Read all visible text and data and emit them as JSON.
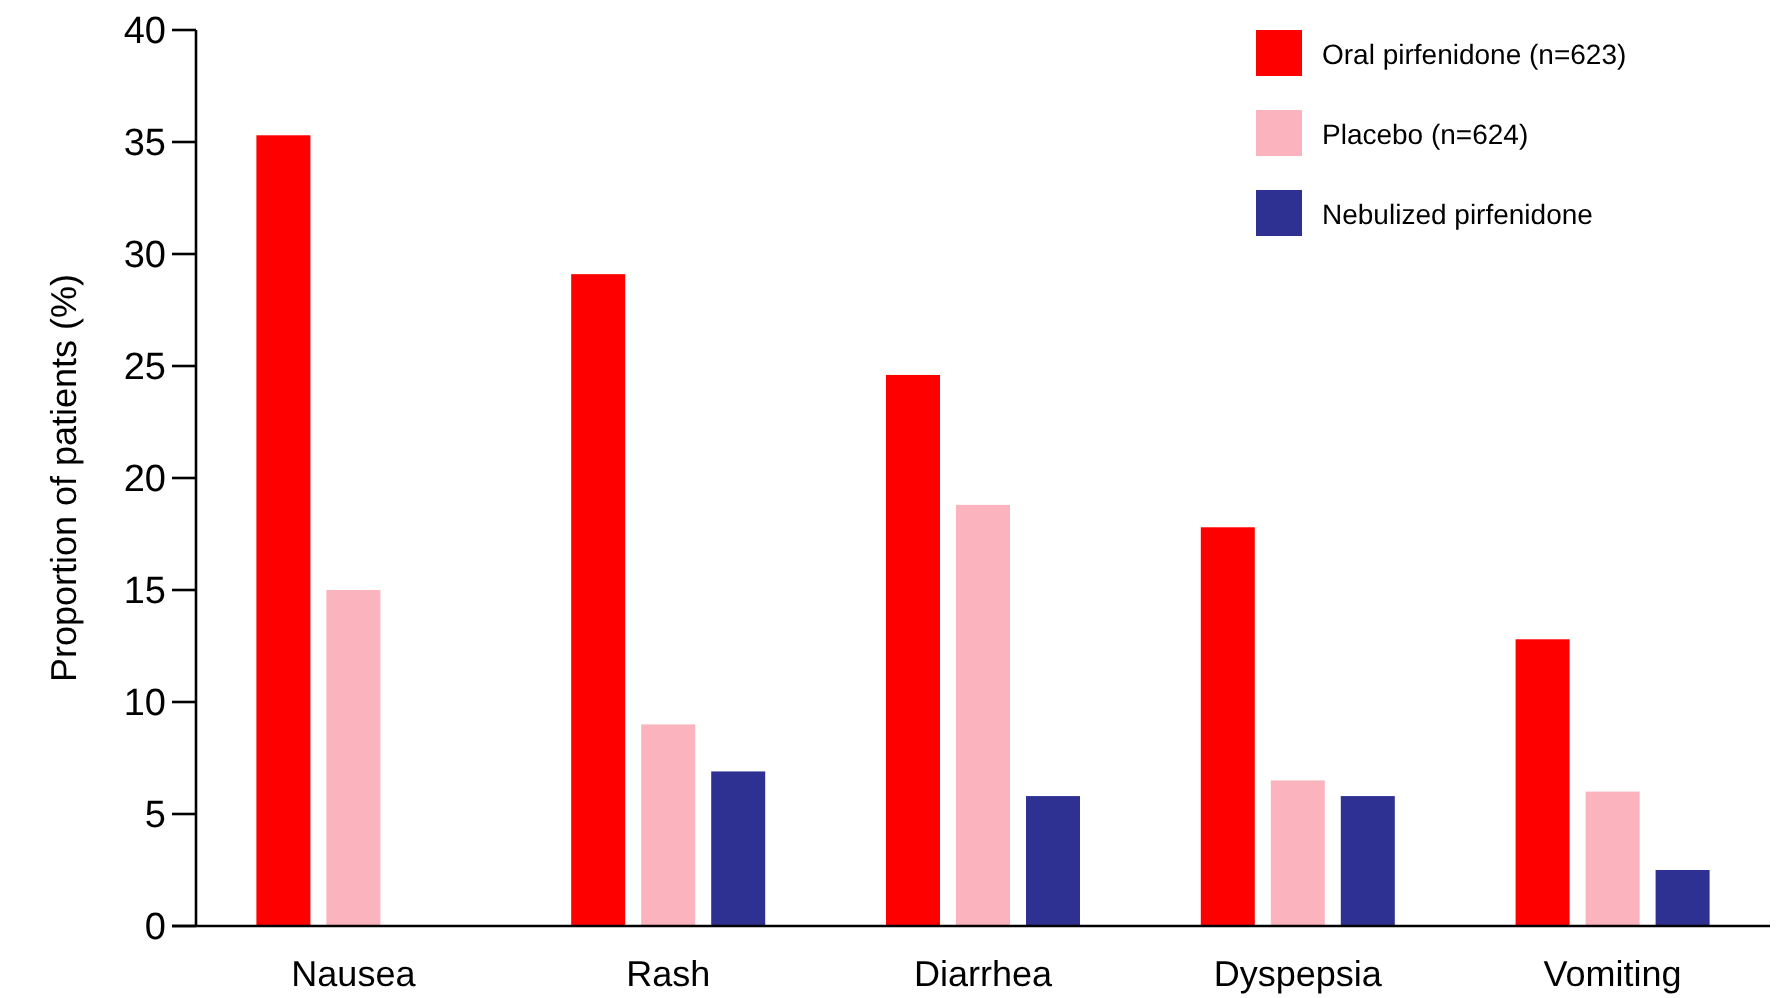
{
  "chart_data": {
    "type": "bar",
    "ylabel": "Proportion of patients (%)",
    "categories": [
      "Nausea",
      "Rash",
      "Diarrhea",
      "Dyspepsia",
      "Vomiting"
    ],
    "ylim": [
      0,
      40
    ],
    "yticks": [
      0,
      5,
      10,
      15,
      20,
      25,
      30,
      35,
      40
    ],
    "grid": false,
    "legend": "top right",
    "series": [
      {
        "name": "Oral pirfenidone (n=623)",
        "color": "#ff0000",
        "values": [
          35.3,
          29.1,
          24.6,
          17.8,
          12.8
        ]
      },
      {
        "name": "Placebo (n=624)",
        "color": "#fbb4bd",
        "values": [
          15.0,
          9.0,
          18.8,
          6.5,
          6.0
        ]
      },
      {
        "name": "Nebulized pirfenidone",
        "color": "#2e3192",
        "values": [
          null,
          6.9,
          5.8,
          5.8,
          2.5
        ]
      }
    ]
  }
}
